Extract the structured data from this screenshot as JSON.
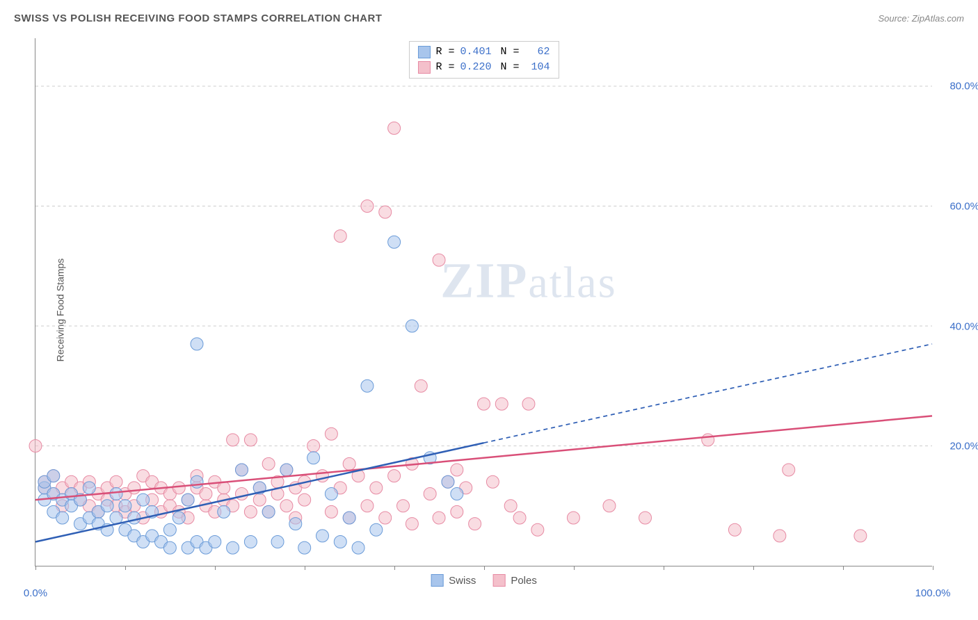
{
  "header": {
    "title": "SWISS VS POLISH RECEIVING FOOD STAMPS CORRELATION CHART",
    "source_prefix": "Source: ",
    "source_name": "ZipAtlas.com"
  },
  "ylabel": "Receiving Food Stamps",
  "watermark": {
    "bold": "ZIP",
    "rest": "atlas"
  },
  "axes": {
    "xlim": [
      0,
      100
    ],
    "ylim": [
      0,
      88
    ],
    "xtick_positions": [
      0,
      10,
      20,
      30,
      40,
      50,
      60,
      70,
      80,
      90,
      100
    ],
    "xtick_labels_shown": {
      "0": "0.0%",
      "100": "100.0%"
    },
    "ytick_positions": [
      20,
      40,
      60,
      80
    ],
    "ytick_labels": {
      "20": "20.0%",
      "40": "40.0%",
      "60": "60.0%",
      "80": "80.0%"
    },
    "grid_color": "#cccccc"
  },
  "series": {
    "swiss": {
      "label": "Swiss",
      "fill": "#a8c5ec",
      "stroke": "#6a9bd8",
      "line_color": "#2f5fb5",
      "R": "0.401",
      "N": "62",
      "trend": {
        "x1": 0,
        "y1": 4,
        "x2": 100,
        "y2": 37,
        "solid_until_x": 50
      },
      "points": [
        [
          1,
          11
        ],
        [
          1,
          13
        ],
        [
          1,
          14
        ],
        [
          2,
          9
        ],
        [
          2,
          12
        ],
        [
          2,
          15
        ],
        [
          3,
          11
        ],
        [
          3,
          8
        ],
        [
          4,
          12
        ],
        [
          4,
          10
        ],
        [
          5,
          7
        ],
        [
          5,
          11
        ],
        [
          6,
          8
        ],
        [
          6,
          13
        ],
        [
          7,
          9
        ],
        [
          7,
          7
        ],
        [
          8,
          10
        ],
        [
          8,
          6
        ],
        [
          9,
          8
        ],
        [
          9,
          12
        ],
        [
          10,
          10
        ],
        [
          10,
          6
        ],
        [
          11,
          5
        ],
        [
          11,
          8
        ],
        [
          12,
          4
        ],
        [
          12,
          11
        ],
        [
          13,
          5
        ],
        [
          13,
          9
        ],
        [
          14,
          4
        ],
        [
          15,
          6
        ],
        [
          15,
          3
        ],
        [
          16,
          8
        ],
        [
          17,
          3
        ],
        [
          17,
          11
        ],
        [
          18,
          4
        ],
        [
          18,
          14
        ],
        [
          19,
          3
        ],
        [
          20,
          4
        ],
        [
          21,
          9
        ],
        [
          22,
          3
        ],
        [
          23,
          16
        ],
        [
          24,
          4
        ],
        [
          25,
          13
        ],
        [
          26,
          9
        ],
        [
          27,
          4
        ],
        [
          28,
          16
        ],
        [
          29,
          7
        ],
        [
          30,
          3
        ],
        [
          31,
          18
        ],
        [
          32,
          5
        ],
        [
          33,
          12
        ],
        [
          34,
          4
        ],
        [
          35,
          8
        ],
        [
          36,
          3
        ],
        [
          37,
          30
        ],
        [
          38,
          6
        ],
        [
          18,
          37
        ],
        [
          40,
          54
        ],
        [
          42,
          40
        ],
        [
          44,
          18
        ],
        [
          46,
          14
        ],
        [
          47,
          12
        ]
      ]
    },
    "poles": {
      "label": "Poles",
      "fill": "#f4c0cb",
      "stroke": "#e78aa3",
      "line_color": "#d94f78",
      "R": "0.220",
      "N": "104",
      "trend": {
        "x1": 0,
        "y1": 11,
        "x2": 100,
        "y2": 25
      },
      "points": [
        [
          0,
          20
        ],
        [
          1,
          13
        ],
        [
          1,
          14
        ],
        [
          2,
          12
        ],
        [
          2,
          15
        ],
        [
          3,
          13
        ],
        [
          3,
          10
        ],
        [
          4,
          12
        ],
        [
          4,
          14
        ],
        [
          5,
          11
        ],
        [
          5,
          13
        ],
        [
          6,
          10
        ],
        [
          6,
          14
        ],
        [
          7,
          12
        ],
        [
          7,
          9
        ],
        [
          8,
          13
        ],
        [
          8,
          11
        ],
        [
          9,
          10
        ],
        [
          9,
          14
        ],
        [
          10,
          12
        ],
        [
          10,
          9
        ],
        [
          11,
          13
        ],
        [
          11,
          10
        ],
        [
          12,
          15
        ],
        [
          12,
          8
        ],
        [
          13,
          11
        ],
        [
          13,
          14
        ],
        [
          14,
          9
        ],
        [
          14,
          13
        ],
        [
          15,
          12
        ],
        [
          15,
          10
        ],
        [
          16,
          9
        ],
        [
          16,
          13
        ],
        [
          17,
          11
        ],
        [
          17,
          8
        ],
        [
          18,
          13
        ],
        [
          18,
          15
        ],
        [
          19,
          10
        ],
        [
          19,
          12
        ],
        [
          20,
          14
        ],
        [
          20,
          9
        ],
        [
          21,
          11
        ],
        [
          21,
          13
        ],
        [
          22,
          10
        ],
        [
          22,
          21
        ],
        [
          23,
          12
        ],
        [
          23,
          16
        ],
        [
          24,
          9
        ],
        [
          24,
          21
        ],
        [
          25,
          13
        ],
        [
          25,
          11
        ],
        [
          26,
          17
        ],
        [
          26,
          9
        ],
        [
          27,
          12
        ],
        [
          27,
          14
        ],
        [
          28,
          10
        ],
        [
          28,
          16
        ],
        [
          29,
          13
        ],
        [
          29,
          8
        ],
        [
          30,
          14
        ],
        [
          30,
          11
        ],
        [
          31,
          20
        ],
        [
          32,
          15
        ],
        [
          33,
          9
        ],
        [
          33,
          22
        ],
        [
          34,
          13
        ],
        [
          34,
          55
        ],
        [
          35,
          8
        ],
        [
          35,
          17
        ],
        [
          36,
          15
        ],
        [
          37,
          10
        ],
        [
          37,
          60
        ],
        [
          38,
          13
        ],
        [
          39,
          59
        ],
        [
          39,
          8
        ],
        [
          40,
          15
        ],
        [
          40,
          73
        ],
        [
          41,
          10
        ],
        [
          42,
          17
        ],
        [
          42,
          7
        ],
        [
          43,
          30
        ],
        [
          44,
          12
        ],
        [
          45,
          51
        ],
        [
          45,
          8
        ],
        [
          46,
          14
        ],
        [
          47,
          9
        ],
        [
          47,
          16
        ],
        [
          48,
          13
        ],
        [
          49,
          7
        ],
        [
          50,
          27
        ],
        [
          51,
          14
        ],
        [
          52,
          27
        ],
        [
          53,
          10
        ],
        [
          54,
          8
        ],
        [
          55,
          27
        ],
        [
          56,
          6
        ],
        [
          60,
          8
        ],
        [
          64,
          10
        ],
        [
          68,
          8
        ],
        [
          75,
          21
        ],
        [
          78,
          6
        ],
        [
          84,
          16
        ],
        [
          92,
          5
        ],
        [
          83,
          5
        ]
      ]
    }
  },
  "legend_top": {
    "r_label": "R =",
    "n_label": "N =",
    "value_color": "#3b6fc9"
  },
  "legend_bottom": {
    "items": [
      "swiss",
      "poles"
    ]
  },
  "style": {
    "marker_radius": 9,
    "marker_opacity": 0.55,
    "line_width": 2.5
  }
}
